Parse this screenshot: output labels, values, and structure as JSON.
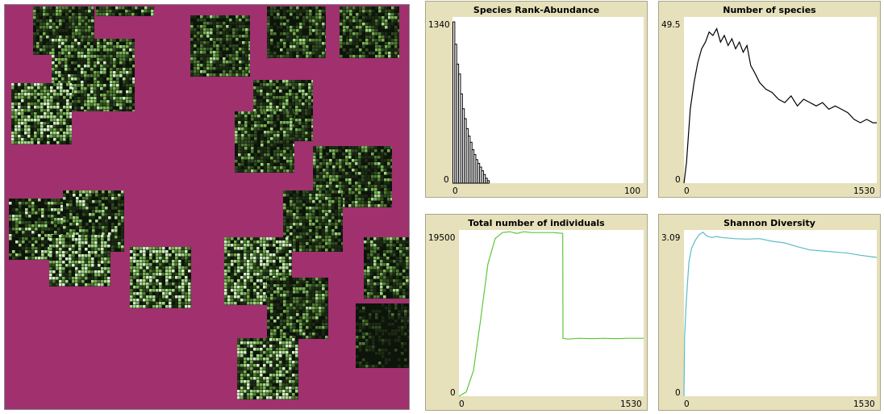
{
  "world": {
    "background": "#a0306e",
    "patch_palette": [
      "#0d140a",
      "#1c2a14",
      "#2f4a20",
      "#4f7a33",
      "#79b055",
      "#a5d88a",
      "#d4efc4"
    ]
  },
  "plots": [
    {
      "id": "rank",
      "title": "Species Rank-Abundance",
      "y_max_label": "1340",
      "y_min_label": "0",
      "x_min_label": "0",
      "x_max_label": "100",
      "color": "#000000"
    },
    {
      "id": "species",
      "title": "Number of species",
      "y_max_label": "49.5",
      "y_min_label": "0",
      "x_min_label": "0",
      "x_max_label": "1530",
      "color": "#000000"
    },
    {
      "id": "individuals",
      "title": "Total number of individuals",
      "y_max_label": "19500",
      "y_min_label": "0",
      "x_min_label": "0",
      "x_max_label": "1530",
      "color": "#5cc73a"
    },
    {
      "id": "shannon",
      "title": "Shannon Diversity",
      "y_max_label": "3.09",
      "y_min_label": "0",
      "x_min_label": "0",
      "x_max_label": "1530",
      "color": "#5bbcc7"
    }
  ],
  "chart_data": [
    {
      "type": "bar",
      "title": "Species Rank-Abundance",
      "xlim": [
        0,
        100
      ],
      "ylim": [
        0,
        1340
      ],
      "values": [
        1300,
        1120,
        960,
        880,
        720,
        600,
        520,
        440,
        380,
        330,
        270,
        230,
        190,
        160,
        130,
        100,
        70,
        40,
        20
      ]
    },
    {
      "type": "line",
      "title": "Number of species",
      "xlim": [
        0,
        1530
      ],
      "ylim": [
        0,
        49.5
      ],
      "x": [
        0,
        20,
        50,
        80,
        110,
        140,
        170,
        200,
        230,
        260,
        290,
        320,
        350,
        380,
        410,
        440,
        470,
        500,
        530,
        560,
        600,
        650,
        700,
        750,
        800,
        850,
        900,
        950,
        1000,
        1050,
        1100,
        1150,
        1200,
        1250,
        1300,
        1350,
        1400,
        1450,
        1500,
        1530
      ],
      "y": [
        0,
        6,
        22,
        30,
        36,
        40,
        42,
        45,
        44,
        46,
        42,
        44,
        41,
        43,
        40,
        42,
        39,
        41,
        35,
        33,
        30,
        28,
        27,
        25,
        24,
        26,
        23,
        25,
        24,
        23,
        24,
        22,
        23,
        22,
        21,
        19,
        18,
        19,
        18,
        18
      ]
    },
    {
      "type": "line",
      "title": "Total number of individuals",
      "xlim": [
        0,
        1530
      ],
      "ylim": [
        0,
        19500
      ],
      "x": [
        0,
        60,
        120,
        180,
        240,
        300,
        360,
        420,
        480,
        540,
        600,
        660,
        720,
        780,
        860,
        862,
        900,
        1000,
        1100,
        1200,
        1300,
        1400,
        1530
      ],
      "y": [
        0,
        500,
        3000,
        9000,
        15500,
        18500,
        19200,
        19300,
        19100,
        19300,
        19200,
        19200,
        19200,
        19200,
        19100,
        6800,
        6700,
        6800,
        6750,
        6800,
        6750,
        6800,
        6800
      ]
    },
    {
      "type": "line",
      "title": "Shannon Diversity",
      "xlim": [
        0,
        1530
      ],
      "ylim": [
        0,
        3.09
      ],
      "x": [
        0,
        5,
        15,
        25,
        40,
        60,
        90,
        120,
        150,
        180,
        220,
        260,
        300,
        400,
        500,
        600,
        700,
        800,
        900,
        1000,
        1100,
        1200,
        1300,
        1400,
        1530
      ],
      "y": [
        0,
        1.1,
        1.6,
        2.0,
        2.5,
        2.75,
        2.9,
        3.0,
        3.05,
        2.98,
        2.95,
        2.97,
        2.95,
        2.93,
        2.92,
        2.93,
        2.88,
        2.85,
        2.78,
        2.72,
        2.7,
        2.68,
        2.66,
        2.62,
        2.58
      ]
    }
  ]
}
